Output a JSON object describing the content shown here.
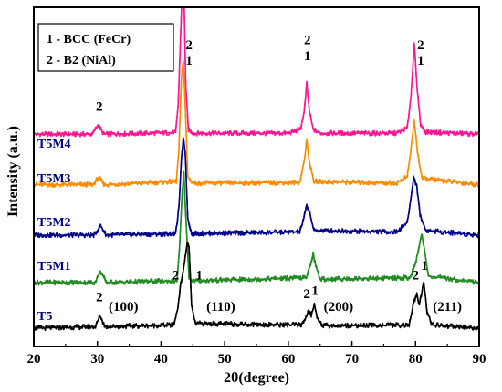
{
  "chart_data": {
    "type": "line",
    "xlabel": "2θ(degree)",
    "ylabel": "Intensity (a.u.)",
    "xlim": [
      20,
      90
    ],
    "xticks": [
      20,
      30,
      40,
      50,
      60,
      70,
      80,
      90
    ],
    "ylim": [
      0,
      10
    ],
    "grid": false,
    "legend": {
      "placement": "top-left",
      "entries": [
        "1 - BCC (FeCr)",
        "2 - B2 (NiAl)"
      ]
    },
    "series": [
      {
        "name": "T5M4",
        "color": "#ff1493",
        "baseline": 6.15,
        "points": [
          [
            20,
            6.15
          ],
          [
            29.2,
            6.15
          ],
          [
            30.1,
            6.45
          ],
          [
            31,
            6.15
          ],
          [
            42.3,
            6.2
          ],
          [
            42.7,
            7.1
          ],
          [
            43.1,
            9.4
          ],
          [
            43.3,
            10.6
          ],
          [
            43.6,
            10.6
          ],
          [
            43.9,
            7.6
          ],
          [
            44.3,
            6.3
          ],
          [
            45,
            6.18
          ],
          [
            60,
            6.18
          ],
          [
            61.9,
            6.3
          ],
          [
            62.5,
            6.85
          ],
          [
            62.9,
            7.75
          ],
          [
            63.3,
            6.9
          ],
          [
            63.9,
            6.3
          ],
          [
            65,
            6.18
          ],
          [
            77,
            6.18
          ],
          [
            78.7,
            6.35
          ],
          [
            79.3,
            7.4
          ],
          [
            79.8,
            9.05
          ],
          [
            80.2,
            7.7
          ],
          [
            80.8,
            6.45
          ],
          [
            81.6,
            6.22
          ],
          [
            90,
            6.15
          ]
        ]
      },
      {
        "name": "T5M3",
        "color": "#ff8c00",
        "baseline": 4.55,
        "points": [
          [
            20,
            4.55
          ],
          [
            29.3,
            4.55
          ],
          [
            30.2,
            4.78
          ],
          [
            31.1,
            4.55
          ],
          [
            42.4,
            4.65
          ],
          [
            42.8,
            5.6
          ],
          [
            43.2,
            7.9
          ],
          [
            43.5,
            8.5
          ],
          [
            43.8,
            7.1
          ],
          [
            44.2,
            4.8
          ],
          [
            45,
            4.6
          ],
          [
            61.8,
            4.62
          ],
          [
            62.5,
            5.3
          ],
          [
            62.9,
            5.95
          ],
          [
            63.3,
            5.3
          ],
          [
            64,
            4.65
          ],
          [
            77,
            4.6
          ],
          [
            78.7,
            4.8
          ],
          [
            79.3,
            5.7
          ],
          [
            79.8,
            6.6
          ],
          [
            80.3,
            5.6
          ],
          [
            81,
            4.75
          ],
          [
            90,
            4.55
          ]
        ]
      },
      {
        "name": "T5M2",
        "color": "#00008b",
        "baseline": 2.95,
        "points": [
          [
            20,
            2.95
          ],
          [
            29.5,
            2.95
          ],
          [
            30.5,
            3.25
          ],
          [
            31.4,
            2.95
          ],
          [
            42.3,
            3.0
          ],
          [
            42.8,
            3.8
          ],
          [
            43.2,
            5.3
          ],
          [
            43.5,
            6.05
          ],
          [
            43.8,
            5.6
          ],
          [
            44.2,
            3.5
          ],
          [
            44.8,
            3.0
          ],
          [
            61.8,
            3.05
          ],
          [
            62.4,
            3.45
          ],
          [
            62.9,
            3.9
          ],
          [
            63.4,
            3.65
          ],
          [
            64,
            3.1
          ],
          [
            77,
            3.05
          ],
          [
            78.7,
            3.35
          ],
          [
            79.3,
            4.15
          ],
          [
            79.7,
            4.8
          ],
          [
            80.2,
            4.5
          ],
          [
            80.7,
            3.6
          ],
          [
            81.6,
            3.1
          ],
          [
            90,
            2.95
          ]
        ]
      },
      {
        "name": "T5M1",
        "color": "#228b22",
        "baseline": 1.45,
        "points": [
          [
            20,
            1.45
          ],
          [
            29.6,
            1.45
          ],
          [
            30.5,
            1.8
          ],
          [
            31.4,
            1.45
          ],
          [
            42.5,
            1.5
          ],
          [
            42.9,
            2.5
          ],
          [
            43.3,
            4.2
          ],
          [
            43.6,
            4.9
          ],
          [
            43.9,
            3.5
          ],
          [
            44.4,
            1.6
          ],
          [
            45,
            1.5
          ],
          [
            62.9,
            1.6
          ],
          [
            63.5,
            2.05
          ],
          [
            63.9,
            2.35
          ],
          [
            64.3,
            2.0
          ],
          [
            65,
            1.55
          ],
          [
            79.2,
            1.6
          ],
          [
            80,
            2.05
          ],
          [
            80.6,
            2.65
          ],
          [
            81,
            2.95
          ],
          [
            81.4,
            2.5
          ],
          [
            82,
            1.65
          ],
          [
            90,
            1.45
          ]
        ]
      },
      {
        "name": "T5",
        "color": "#000000",
        "baseline": 0.0,
        "points": [
          [
            20,
            0
          ],
          [
            29.7,
            0.05
          ],
          [
            30.4,
            0.4
          ],
          [
            31.2,
            0.05
          ],
          [
            42,
            0.1
          ],
          [
            42.6,
            0.6
          ],
          [
            43.1,
            1.4
          ],
          [
            43.6,
            1.95
          ],
          [
            44.1,
            2.7
          ],
          [
            44.4,
            2.6
          ],
          [
            44.8,
            0.7
          ],
          [
            45.4,
            0.15
          ],
          [
            62,
            0.1
          ],
          [
            62.8,
            0.35
          ],
          [
            63.2,
            0.55
          ],
          [
            63.6,
            0.4
          ],
          [
            64.1,
            0.75
          ],
          [
            64.6,
            0.3
          ],
          [
            65.5,
            0.08
          ],
          [
            79,
            0.1
          ],
          [
            79.7,
            0.8
          ],
          [
            80.2,
            1.05
          ],
          [
            80.6,
            0.75
          ],
          [
            81,
            1.15
          ],
          [
            81.3,
            1.45
          ],
          [
            81.8,
            0.55
          ],
          [
            82.6,
            0.1
          ],
          [
            90,
            0
          ]
        ]
      }
    ],
    "annotations": [
      {
        "text": "2",
        "x": 30.3,
        "y": 6.9
      },
      {
        "text": "2",
        "x": 44.4,
        "y": 8.85
      },
      {
        "text": "1",
        "x": 44.4,
        "y": 8.35
      },
      {
        "text": "2",
        "x": 63.0,
        "y": 9.0
      },
      {
        "text": "1",
        "x": 63.0,
        "y": 8.5
      },
      {
        "text": "2",
        "x": 80.8,
        "y": 8.85
      },
      {
        "text": "1",
        "x": 80.8,
        "y": 8.35
      },
      {
        "text": "2",
        "x": 30.3,
        "y": 0.85
      },
      {
        "text": "(100)",
        "x": 34.1,
        "y": 0.55
      },
      {
        "text": "2",
        "x": 42.3,
        "y": 1.55
      },
      {
        "text": "1",
        "x": 46.0,
        "y": 1.55
      },
      {
        "text": "(110)",
        "x": 49.4,
        "y": 0.55
      },
      {
        "text": "2",
        "x": 62.9,
        "y": 0.95
      },
      {
        "text": "1",
        "x": 64.2,
        "y": 1.05
      },
      {
        "text": "(200)",
        "x": 67.9,
        "y": 0.55
      },
      {
        "text": "2",
        "x": 80.0,
        "y": 1.55
      },
      {
        "text": "1",
        "x": 81.4,
        "y": 1.85
      },
      {
        "text": "(211)",
        "x": 85.0,
        "y": 0.55
      }
    ]
  }
}
